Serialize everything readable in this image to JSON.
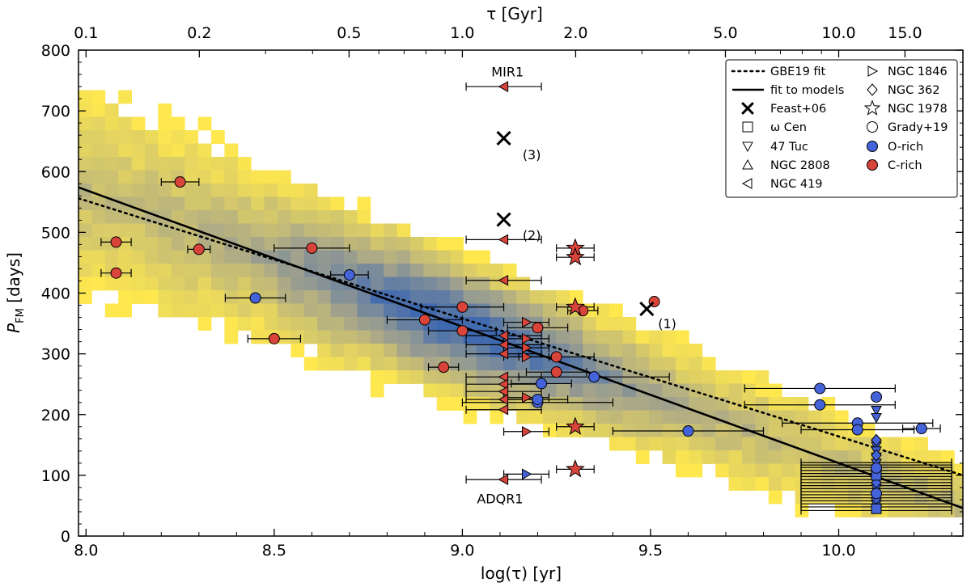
{
  "chart_data": {
    "type": "scatter",
    "title": "",
    "xlabel": "log(τ) [yr]",
    "ylabel_main": "P",
    "ylabel_sub": "FM",
    "ylabel_unit": " [days]",
    "top_axis_label": "τ [Gyr]",
    "xlim": [
      7.98,
      10.33
    ],
    "ylim": [
      0,
      800
    ],
    "grid": false,
    "legend_position": "top-right",
    "x_ticks": [
      8.0,
      8.5,
      9.0,
      9.5,
      10.0
    ],
    "x_tick_labels": [
      "8.0",
      "8.5",
      "9.0",
      "9.5",
      "10.0"
    ],
    "y_ticks": [
      0,
      100,
      200,
      300,
      400,
      500,
      600,
      700,
      800
    ],
    "y_tick_labels": [
      "0",
      "100",
      "200",
      "300",
      "400",
      "500",
      "600",
      "700",
      "800"
    ],
    "top_ticks_gyr": [
      0.1,
      0.2,
      0.5,
      1.0,
      2.0,
      5.0,
      10.0,
      15.0
    ],
    "top_tick_labels": [
      "0.1",
      "0.2",
      "0.5",
      "1.0",
      "2.0",
      "5.0",
      "10.0",
      "15.0"
    ],
    "fit_models": {
      "name": "fit to models",
      "x": [
        7.98,
        10.33
      ],
      "y": [
        574,
        46
      ]
    },
    "gbe19_fit": {
      "name": "GBE19 fit",
      "x": [
        7.98,
        10.33
      ],
      "y": [
        556,
        100
      ]
    },
    "legend": [
      "GBE19 fit",
      "fit to models",
      "Feast+06",
      "ω Cen",
      "47 Tuc",
      "NGC 2808",
      "NGC 419",
      "NGC 1846",
      "NGC 362",
      "NGC 1978",
      "Grady+19",
      "O-rich",
      "C-rich"
    ],
    "annotations": [
      {
        "text": "MIR1",
        "x": 9.12,
        "y": 765
      },
      {
        "text": "ADQR1",
        "x": 9.1,
        "y": 62
      },
      {
        "text": "(3)",
        "x": 9.16,
        "y": 628
      },
      {
        "text": "(2)",
        "x": 9.16,
        "y": 496
      },
      {
        "text": "(1)",
        "x": 9.52,
        "y": 350
      }
    ],
    "feast06": [
      {
        "x": 9.11,
        "y": 655
      },
      {
        "x": 9.11,
        "y": 521
      },
      {
        "x": 9.49,
        "y": 374
      }
    ],
    "grady19_crich": [
      {
        "x": 8.25,
        "y": 583,
        "xerr": 0.05
      },
      {
        "x": 8.08,
        "y": 484,
        "xerr": 0.04
      },
      {
        "x": 8.08,
        "y": 433,
        "xerr": 0.04
      },
      {
        "x": 8.3,
        "y": 472,
        "xerr": 0.03
      },
      {
        "x": 8.6,
        "y": 474,
        "xerr": 0.1
      },
      {
        "x": 8.5,
        "y": 325,
        "xerr": 0.07
      },
      {
        "x": 8.9,
        "y": 356,
        "xerr": 0.1
      },
      {
        "x": 8.95,
        "y": 278,
        "xerr": 0.04
      },
      {
        "x": 9.0,
        "y": 377,
        "xerr": 0.11
      },
      {
        "x": 9.0,
        "y": 338,
        "xerr": 0.09
      },
      {
        "x": 9.2,
        "y": 343,
        "xerr": 0.08
      },
      {
        "x": 9.25,
        "y": 295,
        "xerr": 0.1
      },
      {
        "x": 9.25,
        "y": 270,
        "xerr": 0.08
      },
      {
        "x": 9.32,
        "y": 371,
        "xerr": 0.04
      },
      {
        "x": 9.51,
        "y": 386,
        "xerr": 0.0
      }
    ],
    "grady19_orich": [
      {
        "x": 8.45,
        "y": 392,
        "xerr": 0.08
      },
      {
        "x": 8.7,
        "y": 430,
        "xerr": 0.05
      },
      {
        "x": 9.21,
        "y": 251,
        "xerr": 0.08
      },
      {
        "x": 9.2,
        "y": 220,
        "xerr": 0.2
      },
      {
        "x": 9.2,
        "y": 225,
        "xerr": 0.08
      },
      {
        "x": 9.35,
        "y": 262,
        "xerr": 0.2
      },
      {
        "x": 9.6,
        "y": 173,
        "xerr": 0.2
      },
      {
        "x": 9.95,
        "y": 243,
        "xerr": 0.2
      },
      {
        "x": 9.95,
        "y": 216,
        "xerr": 0.2
      },
      {
        "x": 10.05,
        "y": 186,
        "xerr": 0.2
      },
      {
        "x": 10.05,
        "y": 175,
        "xerr": 0.15
      },
      {
        "x": 10.22,
        "y": 177,
        "xerr": 0.05
      }
    ],
    "ngc419_crich": [
      {
        "x": 9.11,
        "y": 740,
        "xerr": 0.1
      },
      {
        "x": 9.11,
        "y": 488,
        "xerr": 0.1
      },
      {
        "x": 9.11,
        "y": 421,
        "xerr": 0.1
      },
      {
        "x": 9.11,
        "y": 330,
        "xerr": 0.1
      },
      {
        "x": 9.11,
        "y": 315,
        "xerr": 0.1
      },
      {
        "x": 9.11,
        "y": 300,
        "xerr": 0.1
      },
      {
        "x": 9.11,
        "y": 262,
        "xerr": 0.1
      },
      {
        "x": 9.11,
        "y": 250,
        "xerr": 0.1
      },
      {
        "x": 9.11,
        "y": 238,
        "xerr": 0.1
      },
      {
        "x": 9.11,
        "y": 225,
        "xerr": 0.1
      },
      {
        "x": 9.11,
        "y": 208,
        "xerr": 0.1
      },
      {
        "x": 9.11,
        "y": 93,
        "xerr": 0.1
      }
    ],
    "ngc1846_crich": [
      {
        "x": 9.17,
        "y": 352,
        "xerr": 0.06
      },
      {
        "x": 9.17,
        "y": 325,
        "xerr": 0.06
      },
      {
        "x": 9.17,
        "y": 310,
        "xerr": 0.06
      },
      {
        "x": 9.17,
        "y": 295,
        "xerr": 0.06
      },
      {
        "x": 9.17,
        "y": 228,
        "xerr": 0.06
      },
      {
        "x": 9.17,
        "y": 172,
        "xerr": 0.06
      }
    ],
    "ngc1846_orich": [
      {
        "x": 9.17,
        "y": 102,
        "xerr": 0.06
      }
    ],
    "ngc1978_crich": [
      {
        "x": 9.3,
        "y": 474,
        "xerr": 0.05
      },
      {
        "x": 9.3,
        "y": 459,
        "xerr": 0.05
      },
      {
        "x": 9.3,
        "y": 377,
        "xerr": 0.05
      },
      {
        "x": 9.3,
        "y": 180,
        "xerr": 0.05
      },
      {
        "x": 9.3,
        "y": 110,
        "xerr": 0.05
      }
    ],
    "tuc47_orich": [
      {
        "x": 10.1,
        "y": 207
      },
      {
        "x": 10.1,
        "y": 195
      },
      {
        "x": 10.1,
        "y": 148
      },
      {
        "x": 10.1,
        "y": 140
      },
      {
        "x": 10.1,
        "y": 130
      },
      {
        "x": 10.1,
        "y": 120
      },
      {
        "x": 10.1,
        "y": 105
      },
      {
        "x": 10.1,
        "y": 90
      },
      {
        "x": 10.1,
        "y": 78
      },
      {
        "x": 10.1,
        "y": 65
      },
      {
        "x": 10.1,
        "y": 52
      }
    ],
    "ngc362_orich": [
      {
        "x": 10.1,
        "y": 158
      },
      {
        "x": 10.1,
        "y": 133
      },
      {
        "x": 10.1,
        "y": 88
      },
      {
        "x": 10.1,
        "y": 62
      }
    ],
    "wcen_orich": [
      {
        "x": 10.1,
        "y": 45
      },
      {
        "x": 10.1,
        "y": 100
      }
    ],
    "old_cluster_group": {
      "x": 10.1,
      "xerr": 0.2,
      "y": [
        42,
        48,
        53,
        58,
        63,
        68,
        73,
        78,
        83,
        88,
        93,
        98,
        103,
        108,
        113,
        117,
        121
      ]
    },
    "old_cluster_circles": [
      {
        "x": 10.1,
        "y": 229
      },
      {
        "x": 10.1,
        "y": 112
      },
      {
        "x": 10.1,
        "y": 70
      }
    ]
  }
}
